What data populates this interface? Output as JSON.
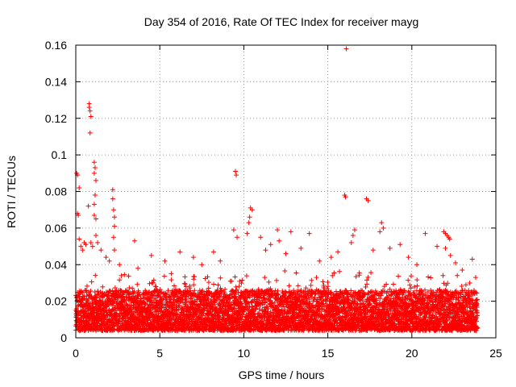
{
  "chart_data": {
    "type": "scatter",
    "title": "Day 354 of 2016, Rate Of TEC Index for receiver mayg",
    "xlabel": "GPS time / hours",
    "ylabel": "ROTI / TECUs",
    "xlim": [
      0,
      25
    ],
    "ylim": [
      0,
      0.16
    ],
    "xticks": [
      0,
      5,
      10,
      15,
      20,
      25
    ],
    "xtick_labels": [
      "0",
      "5",
      "10",
      "15",
      "20",
      "25"
    ],
    "yticks": [
      0,
      0.02,
      0.04,
      0.06,
      0.08,
      0.1,
      0.12,
      0.14,
      0.16
    ],
    "ytick_labels": [
      "0",
      "0.02",
      "0.04",
      "0.06",
      "0.08",
      "0.1",
      "0.12",
      "0.14",
      "0.16"
    ],
    "grid": true,
    "marker": "plus",
    "color": "#ff0000",
    "series": [
      {
        "name": "ROTI",
        "points": [
          [
            0.05,
            0.09
          ],
          [
            0.1,
            0.089
          ],
          [
            0.1,
            0.068
          ],
          [
            0.15,
            0.067
          ],
          [
            0.2,
            0.082
          ],
          [
            0.2,
            0.054
          ],
          [
            0.3,
            0.05
          ],
          [
            0.4,
            0.048
          ],
          [
            0.5,
            0.052
          ],
          [
            0.6,
            0.051
          ],
          [
            0.8,
            0.128
          ],
          [
            0.8,
            0.126
          ],
          [
            0.85,
            0.124
          ],
          [
            0.9,
            0.121
          ],
          [
            0.85,
            0.112
          ],
          [
            0.75,
            0.072
          ],
          [
            0.9,
            0.052
          ],
          [
            1.0,
            0.05
          ],
          [
            1.1,
            0.096
          ],
          [
            1.15,
            0.093
          ],
          [
            1.1,
            0.09
          ],
          [
            1.2,
            0.086
          ],
          [
            1.15,
            0.078
          ],
          [
            1.1,
            0.073
          ],
          [
            1.1,
            0.067
          ],
          [
            1.2,
            0.065
          ],
          [
            1.2,
            0.056
          ],
          [
            1.3,
            0.052
          ],
          [
            1.5,
            0.048
          ],
          [
            1.8,
            0.044
          ],
          [
            2.2,
            0.081
          ],
          [
            2.2,
            0.076
          ],
          [
            2.25,
            0.07
          ],
          [
            2.3,
            0.066
          ],
          [
            2.3,
            0.061
          ],
          [
            2.25,
            0.055
          ],
          [
            2.3,
            0.048
          ],
          [
            2.0,
            0.042
          ],
          [
            2.6,
            0.04
          ],
          [
            3.5,
            0.053
          ],
          [
            3.7,
            0.038
          ],
          [
            4.5,
            0.045
          ],
          [
            5.3,
            0.042
          ],
          [
            6.2,
            0.047
          ],
          [
            7.0,
            0.044
          ],
          [
            7.5,
            0.04
          ],
          [
            8.2,
            0.047
          ],
          [
            8.6,
            0.042
          ],
          [
            9.5,
            0.091
          ],
          [
            9.55,
            0.089
          ],
          [
            9.4,
            0.059
          ],
          [
            9.6,
            0.055
          ],
          [
            10.4,
            0.071
          ],
          [
            10.5,
            0.07
          ],
          [
            10.35,
            0.066
          ],
          [
            10.3,
            0.063
          ],
          [
            10.2,
            0.057
          ],
          [
            11.0,
            0.055
          ],
          [
            11.3,
            0.048
          ],
          [
            11.6,
            0.051
          ],
          [
            12.0,
            0.059
          ],
          [
            12.1,
            0.053
          ],
          [
            12.5,
            0.046
          ],
          [
            12.8,
            0.058
          ],
          [
            13.4,
            0.049
          ],
          [
            13.9,
            0.057
          ],
          [
            14.5,
            0.042
          ],
          [
            15.2,
            0.044
          ],
          [
            15.6,
            0.047
          ],
          [
            16.1,
            0.158
          ],
          [
            16.0,
            0.078
          ],
          [
            16.05,
            0.077
          ],
          [
            16.6,
            0.059
          ],
          [
            16.5,
            0.056
          ],
          [
            16.4,
            0.052
          ],
          [
            17.3,
            0.076
          ],
          [
            17.4,
            0.075
          ],
          [
            17.7,
            0.048
          ],
          [
            18.2,
            0.063
          ],
          [
            18.3,
            0.06
          ],
          [
            18.1,
            0.058
          ],
          [
            18.7,
            0.049
          ],
          [
            19.3,
            0.051
          ],
          [
            19.8,
            0.044
          ],
          [
            20.3,
            0.04
          ],
          [
            20.8,
            0.057
          ],
          [
            21.5,
            0.05
          ],
          [
            21.9,
            0.058
          ],
          [
            22.0,
            0.057
          ],
          [
            22.1,
            0.056
          ],
          [
            22.2,
            0.055
          ],
          [
            22.25,
            0.054
          ],
          [
            22.0,
            0.049
          ],
          [
            22.3,
            0.045
          ],
          [
            22.6,
            0.041
          ],
          [
            23.0,
            0.037
          ],
          [
            23.6,
            0.043
          ],
          [
            23.8,
            0.033
          ]
        ],
        "baseline_band": {
          "x_range": [
            0,
            23.9
          ],
          "typical_range": [
            0.004,
            0.026
          ],
          "note": "dense cloud of points between roughly 0.004 and 0.026 TECUs throughout the day"
        }
      }
    ]
  }
}
